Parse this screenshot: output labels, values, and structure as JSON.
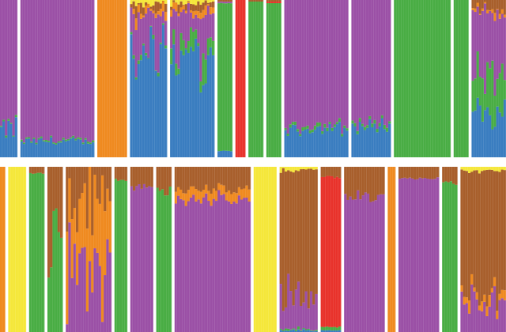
{
  "chart_data": {
    "type": "bar",
    "subtype": "stacked-ancestry-admixture",
    "title": "",
    "xlabel": "",
    "ylabel": "",
    "ylim": [
      0,
      1
    ],
    "grid": false,
    "legend": "none",
    "components": [
      {
        "name": "",
        "color": "#3a7dc0"
      },
      {
        "name": "",
        "color": "#49ad44"
      },
      {
        "name": "",
        "color": "#9b50a6"
      },
      {
        "name": "",
        "color": "#ef8a20"
      },
      {
        "name": "",
        "color": "#a85f2c"
      },
      {
        "name": "",
        "color": "#f5e73a"
      },
      {
        "name": "",
        "color": "#e8322b"
      }
    ],
    "rows": [
      {
        "populations": [
          {
            "count": 7,
            "mean": [
              0.18,
              0.01,
              0.81,
              0,
              0,
              0,
              0
            ],
            "var": 0.1
          },
          {
            "count": 30,
            "mean": [
              0.1,
              0.01,
              0.89,
              0,
              0,
              0,
              0
            ],
            "var": 0.05
          },
          {
            "count": 12,
            "mean": [
              0,
              0,
              0,
              1,
              0,
              0,
              0
            ],
            "var": 0
          },
          {
            "count": 15,
            "mean": [
              0.68,
              0.02,
              0.2,
              0.04,
              0.04,
              0.02,
              0
            ],
            "var": 0.2
          },
          {
            "count": 18,
            "mean": [
              0.62,
              0.1,
              0.2,
              0.03,
              0.03,
              0.02,
              0
            ],
            "var": 0.2
          },
          {
            "count": 6,
            "mean": [
              0.04,
              0.94,
              0.01,
              0,
              0.01,
              0,
              0
            ],
            "var": 0.02
          },
          {
            "count": 4,
            "mean": [
              0,
              0,
              0,
              0,
              0,
              0,
              1
            ],
            "var": 0
          },
          {
            "count": 6,
            "mean": [
              0,
              0.99,
              0,
              0,
              0.01,
              0,
              0
            ],
            "var": 0
          },
          {
            "count": 6,
            "mean": [
              0,
              0.98,
              0,
              0,
              0.01,
              0,
              0.01
            ],
            "var": 0
          },
          {
            "count": 26,
            "mean": [
              0.18,
              0.02,
              0.8,
              0,
              0,
              0,
              0
            ],
            "var": 0.06
          },
          {
            "count": 16,
            "mean": [
              0.2,
              0.02,
              0.78,
              0,
              0,
              0,
              0
            ],
            "var": 0.06
          },
          {
            "count": 23,
            "mean": [
              0,
              1,
              0,
              0,
              0,
              0,
              0
            ],
            "var": 0
          },
          {
            "count": 6,
            "mean": [
              0,
              1,
              0,
              0,
              0,
              0,
              0
            ],
            "var": 0
          },
          {
            "count": 14,
            "mean": [
              0.28,
              0.25,
              0.4,
              0.02,
              0.05,
              0,
              0
            ],
            "var": 0.15
          }
        ]
      },
      {
        "populations": [
          {
            "count": 2,
            "mean": [
              0,
              0,
              0,
              1,
              0,
              0,
              0
            ],
            "var": 0
          },
          {
            "count": 7,
            "mean": [
              0,
              0,
              0,
              0,
              0,
              1,
              0
            ],
            "var": 0
          },
          {
            "count": 6,
            "mean": [
              0,
              0.96,
              0,
              0,
              0.04,
              0,
              0
            ],
            "var": 0.02
          },
          {
            "count": 6,
            "mean": [
              0,
              0.55,
              0,
              0,
              0.45,
              0,
              0
            ],
            "var": 0.25
          },
          {
            "count": 18,
            "mean": [
              0,
              0,
              0.4,
              0.38,
              0.22,
              0,
              0
            ],
            "var": 0.25
          },
          {
            "count": 5,
            "mean": [
              0,
              0.92,
              0,
              0,
              0.08,
              0,
              0
            ],
            "var": 0.03
          },
          {
            "count": 9,
            "mean": [
              0,
              0,
              0.88,
              0,
              0.12,
              0,
              0
            ],
            "var": 0.04
          },
          {
            "count": 6,
            "mean": [
              0,
              0.85,
              0,
              0,
              0.15,
              0,
              0
            ],
            "var": 0.05
          },
          {
            "count": 30,
            "mean": [
              0,
              0,
              0.8,
              0.06,
              0.14,
              0,
              0
            ],
            "var": 0.06
          },
          {
            "count": 9,
            "mean": [
              0,
              0,
              0,
              0,
              0,
              1,
              0
            ],
            "var": 0
          },
          {
            "count": 15,
            "mean": [
              0.01,
              0.01,
              0.22,
              0,
              0.74,
              0.02,
              0
            ],
            "var": 0.12
          },
          {
            "count": 8,
            "mean": [
              0.01,
              0.02,
              0,
              0,
              0.06,
              0,
              0.91
            ],
            "var": 0.03
          },
          {
            "count": 16,
            "mean": [
              0,
              0,
              0.82,
              0,
              0.18,
              0,
              0
            ],
            "var": 0.05
          },
          {
            "count": 3,
            "mean": [
              0,
              0,
              0,
              1,
              0,
              0,
              0
            ],
            "var": 0
          },
          {
            "count": 16,
            "mean": [
              0,
              0,
              0.93,
              0,
              0.07,
              0,
              0
            ],
            "var": 0.02
          },
          {
            "count": 6,
            "mean": [
              0,
              0.9,
              0,
              0,
              0.1,
              0,
              0
            ],
            "var": 0.03
          },
          {
            "count": 18,
            "mean": [
              0,
              0,
              0.18,
              0.05,
              0.75,
              0.02,
              0
            ],
            "var": 0.12
          }
        ]
      }
    ]
  }
}
